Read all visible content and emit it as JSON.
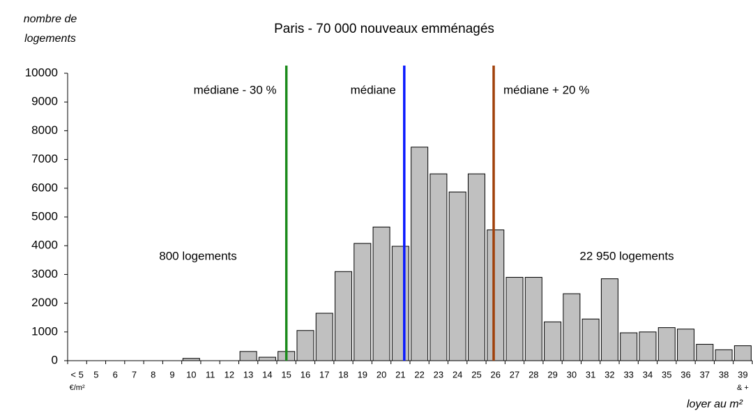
{
  "chart_data": {
    "type": "bar",
    "title": "Paris - 70 000 nouveaux emménagés",
    "ylabel": [
      "nombre de",
      "logements"
    ],
    "xlabel": "loyer au m²",
    "categories": [
      "< 5",
      "5",
      "6",
      "7",
      "8",
      "9",
      "10",
      "11",
      "12",
      "13",
      "14",
      "15",
      "16",
      "17",
      "18",
      "19",
      "20",
      "21",
      "22",
      "23",
      "24",
      "25",
      "26",
      "27",
      "28",
      "29",
      "30",
      "31",
      "32",
      "33",
      "34",
      "35",
      "36",
      "37",
      "38",
      "39"
    ],
    "x_sublabels": [
      {
        "index": 0,
        "label": "€/m²"
      },
      {
        "index": 35,
        "label": "& +"
      }
    ],
    "values": [
      0,
      0,
      0,
      0,
      0,
      0,
      80,
      0,
      0,
      320,
      120,
      320,
      1050,
      1650,
      3100,
      4080,
      4650,
      3980,
      7430,
      6500,
      5870,
      6500,
      4550,
      2900,
      2900,
      1350,
      2330,
      1450,
      2850,
      970,
      1000,
      1150,
      1100,
      570,
      380,
      520
    ],
    "color": "#c0c0c0",
    "ylim": [
      0,
      10000
    ],
    "yticks": [
      0,
      1000,
      2000,
      3000,
      4000,
      5000,
      6000,
      7000,
      8000,
      9000,
      10000
    ],
    "reference_lines": [
      {
        "label": "médiane - 30 %",
        "x": 15,
        "color": "#1a8a1a"
      },
      {
        "label": "médiane",
        "x": 21.2,
        "color": "#0a1aff"
      },
      {
        "label": "médiane + 20 %",
        "x": 25.9,
        "color": "#a0400a"
      }
    ],
    "annotations": [
      "800 logements",
      "22 950 logements"
    ]
  }
}
